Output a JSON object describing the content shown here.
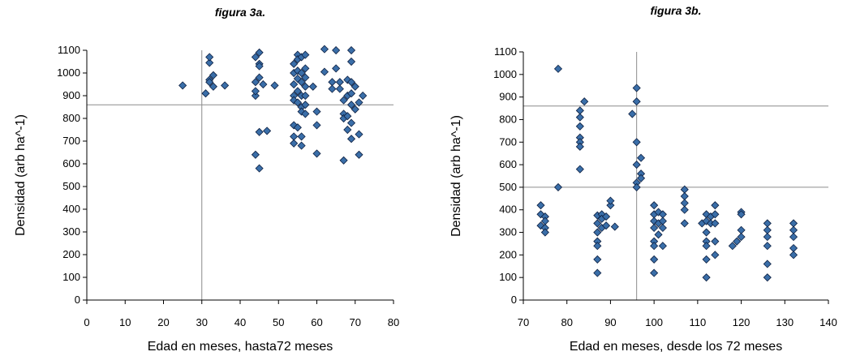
{
  "chart_data": [
    {
      "id": "3a",
      "type": "scatter",
      "title": "figura 3a.",
      "xlabel": "Edad en meses, hasta72 meses",
      "ylabel": "Densidad (arb ha^-1)",
      "xlim": [
        0,
        80
      ],
      "ylim": [
        0,
        1100
      ],
      "xticks": [
        0,
        10,
        20,
        30,
        40,
        50,
        60,
        70,
        80
      ],
      "yticks": [
        0,
        100,
        200,
        300,
        400,
        500,
        600,
        700,
        800,
        900,
        1000,
        1100
      ],
      "ref_lines": {
        "x": [
          30
        ],
        "y": [
          860
        ]
      },
      "marker_color": "#3a6ea8",
      "points": [
        [
          25,
          945
        ],
        [
          31,
          910
        ],
        [
          32,
          970
        ],
        [
          32,
          960
        ],
        [
          32,
          1045
        ],
        [
          32,
          1070
        ],
        [
          33,
          990
        ],
        [
          33,
          940
        ],
        [
          36,
          945
        ],
        [
          44,
          1070
        ],
        [
          44,
          960
        ],
        [
          44,
          900
        ],
        [
          44,
          920
        ],
        [
          44,
          640
        ],
        [
          45,
          1090
        ],
        [
          45,
          1040
        ],
        [
          45,
          1030
        ],
        [
          45,
          980
        ],
        [
          45,
          740
        ],
        [
          45,
          580
        ],
        [
          46,
          950
        ],
        [
          47,
          745
        ],
        [
          49,
          945
        ],
        [
          54,
          1040
        ],
        [
          54,
          1000
        ],
        [
          54,
          950
        ],
        [
          54,
          900
        ],
        [
          54,
          880
        ],
        [
          54,
          770
        ],
        [
          54,
          720
        ],
        [
          54,
          690
        ],
        [
          55,
          1080
        ],
        [
          55,
          1060
        ],
        [
          55,
          1010
        ],
        [
          55,
          975
        ],
        [
          55,
          920
        ],
        [
          55,
          870
        ],
        [
          55,
          760
        ],
        [
          56,
          1070
        ],
        [
          56,
          1000
        ],
        [
          56,
          960
        ],
        [
          56,
          900
        ],
        [
          56,
          850
        ],
        [
          56,
          830
        ],
        [
          56,
          720
        ],
        [
          56,
          680
        ],
        [
          57,
          1080
        ],
        [
          57,
          1020
        ],
        [
          57,
          980
        ],
        [
          57,
          940
        ],
        [
          57,
          900
        ],
        [
          57,
          860
        ],
        [
          57,
          820
        ],
        [
          59,
          940
        ],
        [
          60,
          830
        ],
        [
          60,
          770
        ],
        [
          60,
          645
        ],
        [
          62,
          1105
        ],
        [
          62,
          1005
        ],
        [
          64,
          960
        ],
        [
          64,
          930
        ],
        [
          65,
          1100
        ],
        [
          65,
          1020
        ],
        [
          66,
          960
        ],
        [
          66,
          930
        ],
        [
          67,
          880
        ],
        [
          67,
          820
        ],
        [
          67,
          800
        ],
        [
          67,
          615
        ],
        [
          68,
          970
        ],
        [
          68,
          900
        ],
        [
          68,
          810
        ],
        [
          68,
          750
        ],
        [
          69,
          1100
        ],
        [
          69,
          1050
        ],
        [
          69,
          960
        ],
        [
          69,
          910
        ],
        [
          69,
          860
        ],
        [
          69,
          780
        ],
        [
          69,
          710
        ],
        [
          70,
          940
        ],
        [
          70,
          840
        ],
        [
          71,
          870
        ],
        [
          71,
          730
        ],
        [
          71,
          640
        ],
        [
          72,
          900
        ]
      ]
    },
    {
      "id": "3b",
      "type": "scatter",
      "title": "figura 3b.",
      "xlabel": "Edad en meses, desde los 72 meses",
      "ylabel": "Densidad (arb ha^-1)",
      "xlim": [
        70,
        140
      ],
      "ylim": [
        0,
        1100
      ],
      "xticks": [
        70,
        80,
        90,
        100,
        110,
        120,
        130,
        140
      ],
      "yticks": [
        0,
        100,
        200,
        300,
        400,
        500,
        600,
        700,
        800,
        900,
        1000,
        1100
      ],
      "ref_lines": {
        "x": [
          96
        ],
        "y": [
          860,
          500
        ]
      },
      "marker_color": "#3a6ea8",
      "points": [
        [
          74,
          420
        ],
        [
          74,
          380
        ],
        [
          74,
          330
        ],
        [
          75,
          370
        ],
        [
          75,
          350
        ],
        [
          75,
          320
        ],
        [
          75,
          300
        ],
        [
          78,
          1025
        ],
        [
          78,
          500
        ],
        [
          83,
          840
        ],
        [
          83,
          810
        ],
        [
          83,
          770
        ],
        [
          83,
          720
        ],
        [
          83,
          700
        ],
        [
          83,
          680
        ],
        [
          83,
          580
        ],
        [
          84,
          880
        ],
        [
          87,
          375
        ],
        [
          87,
          340
        ],
        [
          87,
          300
        ],
        [
          87,
          260
        ],
        [
          87,
          240
        ],
        [
          87,
          180
        ],
        [
          87,
          120
        ],
        [
          88,
          380
        ],
        [
          88,
          360
        ],
        [
          88,
          320
        ],
        [
          89,
          370
        ],
        [
          89,
          330
        ],
        [
          90,
          420
        ],
        [
          90,
          440
        ],
        [
          91,
          325
        ],
        [
          95,
          825
        ],
        [
          96,
          940
        ],
        [
          96,
          880
        ],
        [
          96,
          700
        ],
        [
          96,
          600
        ],
        [
          96,
          520
        ],
        [
          96,
          500
        ],
        [
          97,
          560
        ],
        [
          97,
          630
        ],
        [
          97,
          540
        ],
        [
          100,
          420
        ],
        [
          100,
          380
        ],
        [
          100,
          350
        ],
        [
          100,
          320
        ],
        [
          100,
          260
        ],
        [
          100,
          240
        ],
        [
          100,
          180
        ],
        [
          100,
          120
        ],
        [
          101,
          390
        ],
        [
          101,
          340
        ],
        [
          101,
          290
        ],
        [
          102,
          380
        ],
        [
          102,
          350
        ],
        [
          102,
          320
        ],
        [
          102,
          240
        ],
        [
          107,
          490
        ],
        [
          107,
          460
        ],
        [
          107,
          430
        ],
        [
          107,
          400
        ],
        [
          107,
          340
        ],
        [
          111,
          340
        ],
        [
          112,
          380
        ],
        [
          112,
          350
        ],
        [
          112,
          300
        ],
        [
          112,
          260
        ],
        [
          112,
          240
        ],
        [
          112,
          180
        ],
        [
          112,
          100
        ],
        [
          113,
          370
        ],
        [
          113,
          340
        ],
        [
          114,
          420
        ],
        [
          114,
          380
        ],
        [
          114,
          340
        ],
        [
          114,
          260
        ],
        [
          114,
          200
        ],
        [
          118,
          240
        ],
        [
          119,
          260
        ],
        [
          120,
          390
        ],
        [
          120,
          380
        ],
        [
          120,
          310
        ],
        [
          120,
          280
        ],
        [
          126,
          340
        ],
        [
          126,
          310
        ],
        [
          126,
          280
        ],
        [
          126,
          240
        ],
        [
          126,
          160
        ],
        [
          126,
          100
        ],
        [
          132,
          340
        ],
        [
          132,
          310
        ],
        [
          132,
          280
        ],
        [
          132,
          230
        ],
        [
          132,
          200
        ]
      ]
    }
  ]
}
